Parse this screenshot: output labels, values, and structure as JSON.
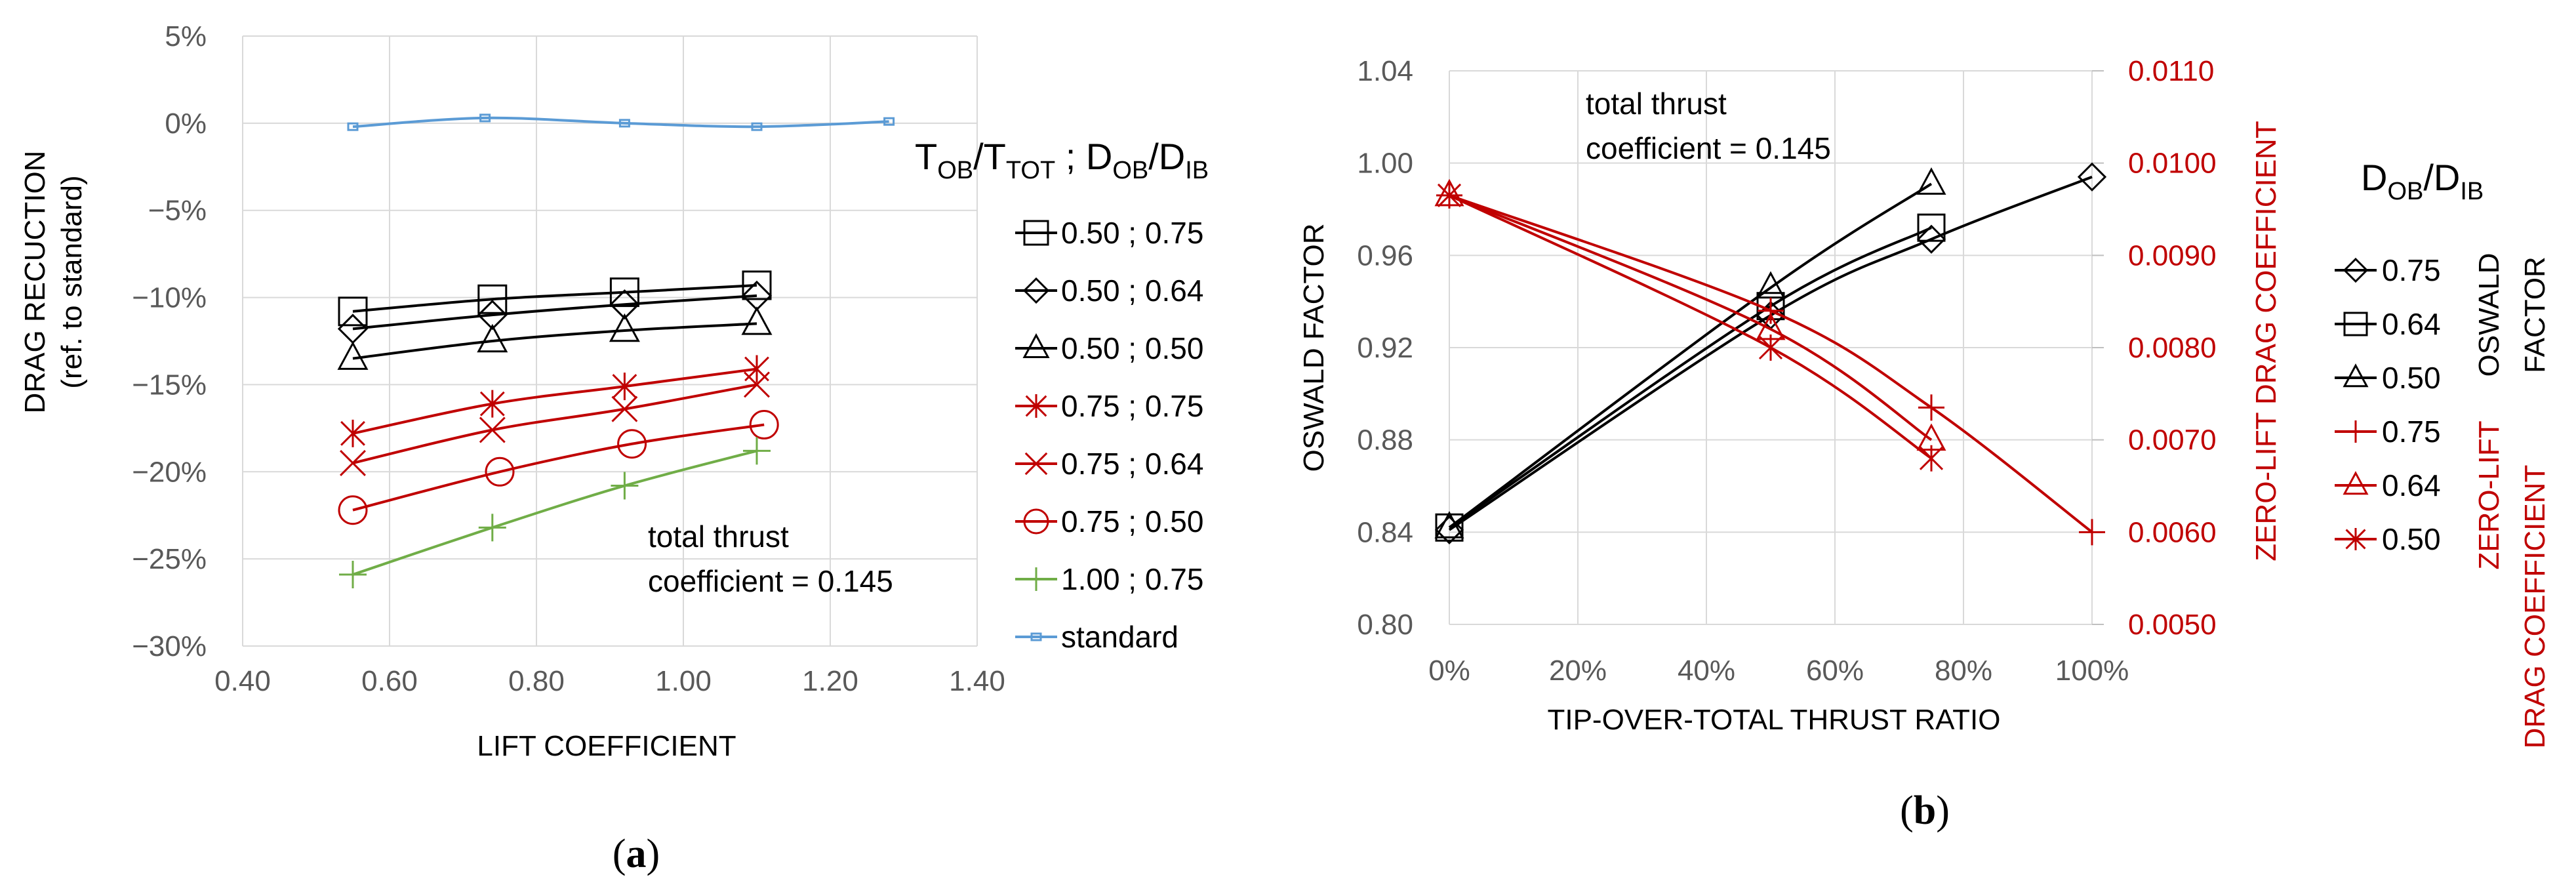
{
  "colors": {
    "black": "#000000",
    "red": "#c00000",
    "green": "#70ad47",
    "blue": "#5b9bd5",
    "grid": "#d9d9d9",
    "tick": "#595959"
  },
  "chart_data": [
    {
      "id": "a",
      "type": "line",
      "panel_label": "a",
      "xlabel": "LIFT  COEFFICIENT",
      "ylabel": [
        "DRAG RECUCTION",
        "(ref. to standard)"
      ],
      "xlim": [
        0.4,
        1.4
      ],
      "ylim": [
        -30,
        5
      ],
      "xticks": [
        0.4,
        0.6,
        0.8,
        1.0,
        1.2,
        1.4
      ],
      "xtick_labels": [
        "0.40",
        "0.60",
        "0.80",
        "1.00",
        "1.20",
        "1.40"
      ],
      "yticks": [
        5,
        0,
        -5,
        -10,
        -15,
        -20,
        -25,
        -30
      ],
      "ytick_labels": [
        "5%",
        "0%",
        "−5%",
        "−10%",
        "−15%",
        "−20%",
        "−25%",
        "−30%"
      ],
      "annotation": [
        "total thrust",
        "coefficient = 0.145"
      ],
      "legend_title": {
        "pre": "T",
        "sub1": "OB",
        "mid1": "/T",
        "sub2": "TOT",
        "mid2": " ; D",
        "sub3": "OB",
        "mid3": "/D",
        "sub4": "IB"
      },
      "series": [
        {
          "name": "0.50 ; 0.75",
          "color": "black",
          "marker": "square",
          "x": [
            0.55,
            0.74,
            0.92,
            1.1
          ],
          "y": [
            -10.8,
            -10.1,
            -9.7,
            -9.3
          ]
        },
        {
          "name": "0.50 ; 0.64",
          "color": "black",
          "marker": "diamond",
          "x": [
            0.55,
            0.74,
            0.92,
            1.1
          ],
          "y": [
            -11.8,
            -11.0,
            -10.4,
            -9.9
          ]
        },
        {
          "name": "0.50 ; 0.50",
          "color": "black",
          "marker": "triangle",
          "x": [
            0.55,
            0.74,
            0.92,
            1.1
          ],
          "y": [
            -13.5,
            -12.5,
            -11.9,
            -11.5
          ]
        },
        {
          "name": "0.75 ; 0.75",
          "color": "red",
          "marker": "asterisk",
          "x": [
            0.55,
            0.74,
            0.92,
            1.1
          ],
          "y": [
            -17.8,
            -16.1,
            -15.1,
            -14.1
          ]
        },
        {
          "name": "0.75 ; 0.64",
          "color": "red",
          "marker": "x",
          "x": [
            0.55,
            0.74,
            0.92,
            1.1
          ],
          "y": [
            -19.5,
            -17.6,
            -16.4,
            -15.0
          ]
        },
        {
          "name": "0.75 ; 0.50",
          "color": "red",
          "marker": "circle",
          "x": [
            0.55,
            0.75,
            0.93,
            1.11
          ],
          "y": [
            -22.2,
            -20.0,
            -18.4,
            -17.3
          ]
        },
        {
          "name": "1.00 ; 0.75",
          "color": "green",
          "marker": "plus",
          "x": [
            0.55,
            0.74,
            0.92,
            1.1
          ],
          "y": [
            -25.9,
            -23.2,
            -20.8,
            -18.8
          ]
        },
        {
          "name": "standard",
          "color": "blue",
          "marker": "smallsquare",
          "x": [
            0.55,
            0.73,
            0.92,
            1.1,
            1.28
          ],
          "y": [
            -0.2,
            0.3,
            0.0,
            -0.2,
            0.1
          ]
        }
      ]
    },
    {
      "id": "b",
      "type": "line",
      "panel_label": "b",
      "xlabel": "TIP-OVER-TOTAL THRUST RATIO",
      "ylabel": "OSWALD FACTOR",
      "y2label": "ZERO-LIFT DRAG COEFFICIENT",
      "xlim": [
        0,
        100
      ],
      "ylim": [
        0.8,
        1.04
      ],
      "y2lim": [
        0.005,
        0.011
      ],
      "xticks": [
        0,
        20,
        40,
        60,
        80,
        100
      ],
      "xtick_labels": [
        "0%",
        "20%",
        "40%",
        "60%",
        "80%",
        "100%"
      ],
      "yticks": [
        0.8,
        0.84,
        0.88,
        0.92,
        0.96,
        1.0,
        1.04
      ],
      "ytick_labels": [
        "0.80",
        "0.84",
        "0.88",
        "0.92",
        "0.96",
        "1.00",
        "1.04"
      ],
      "y2ticks": [
        0.005,
        0.006,
        0.007,
        0.008,
        0.009,
        0.01,
        0.011
      ],
      "y2tick_labels": [
        "0.0050",
        "0.0060",
        "0.0070",
        "0.0080",
        "0.0090",
        "0.0100",
        "0.0110"
      ],
      "annotation": [
        "total thrust",
        "coefficient = 0.145"
      ],
      "legend_title": {
        "pre": "D",
        "sub1": "OB",
        "mid1": "/D",
        "sub2": "IB"
      },
      "legend_group1": [
        "OSWALD",
        "FACTOR"
      ],
      "legend_group2": [
        "ZERO-LIFT",
        "DRAG COEFFICIENT"
      ],
      "series": [
        {
          "name": "0.75",
          "color": "black",
          "marker": "diamond",
          "axis": "left",
          "x": [
            0,
            50,
            75,
            100
          ],
          "y": [
            0.841,
            0.934,
            0.967,
            0.994
          ]
        },
        {
          "name": "0.64",
          "color": "black",
          "marker": "square",
          "axis": "left",
          "x": [
            0,
            50,
            75
          ],
          "y": [
            0.842,
            0.938,
            0.972
          ]
        },
        {
          "name": "0.50",
          "color": "black",
          "marker": "triangle",
          "axis": "left",
          "x": [
            0,
            50,
            75
          ],
          "y": [
            0.842,
            0.946,
            0.991
          ]
        },
        {
          "name": "0.75",
          "color": "red",
          "marker": "plus",
          "axis": "right",
          "x": [
            0,
            50,
            75,
            100
          ],
          "y": [
            0.00965,
            0.0084,
            0.00735,
            0.006
          ]
        },
        {
          "name": "0.64",
          "color": "red",
          "marker": "triangle",
          "axis": "right",
          "x": [
            0,
            50,
            75
          ],
          "y": [
            0.00965,
            0.0082,
            0.007
          ]
        },
        {
          "name": "0.50",
          "color": "red",
          "marker": "asterisk",
          "axis": "right",
          "x": [
            0,
            50,
            75
          ],
          "y": [
            0.00965,
            0.008,
            0.0068
          ]
        }
      ]
    }
  ]
}
